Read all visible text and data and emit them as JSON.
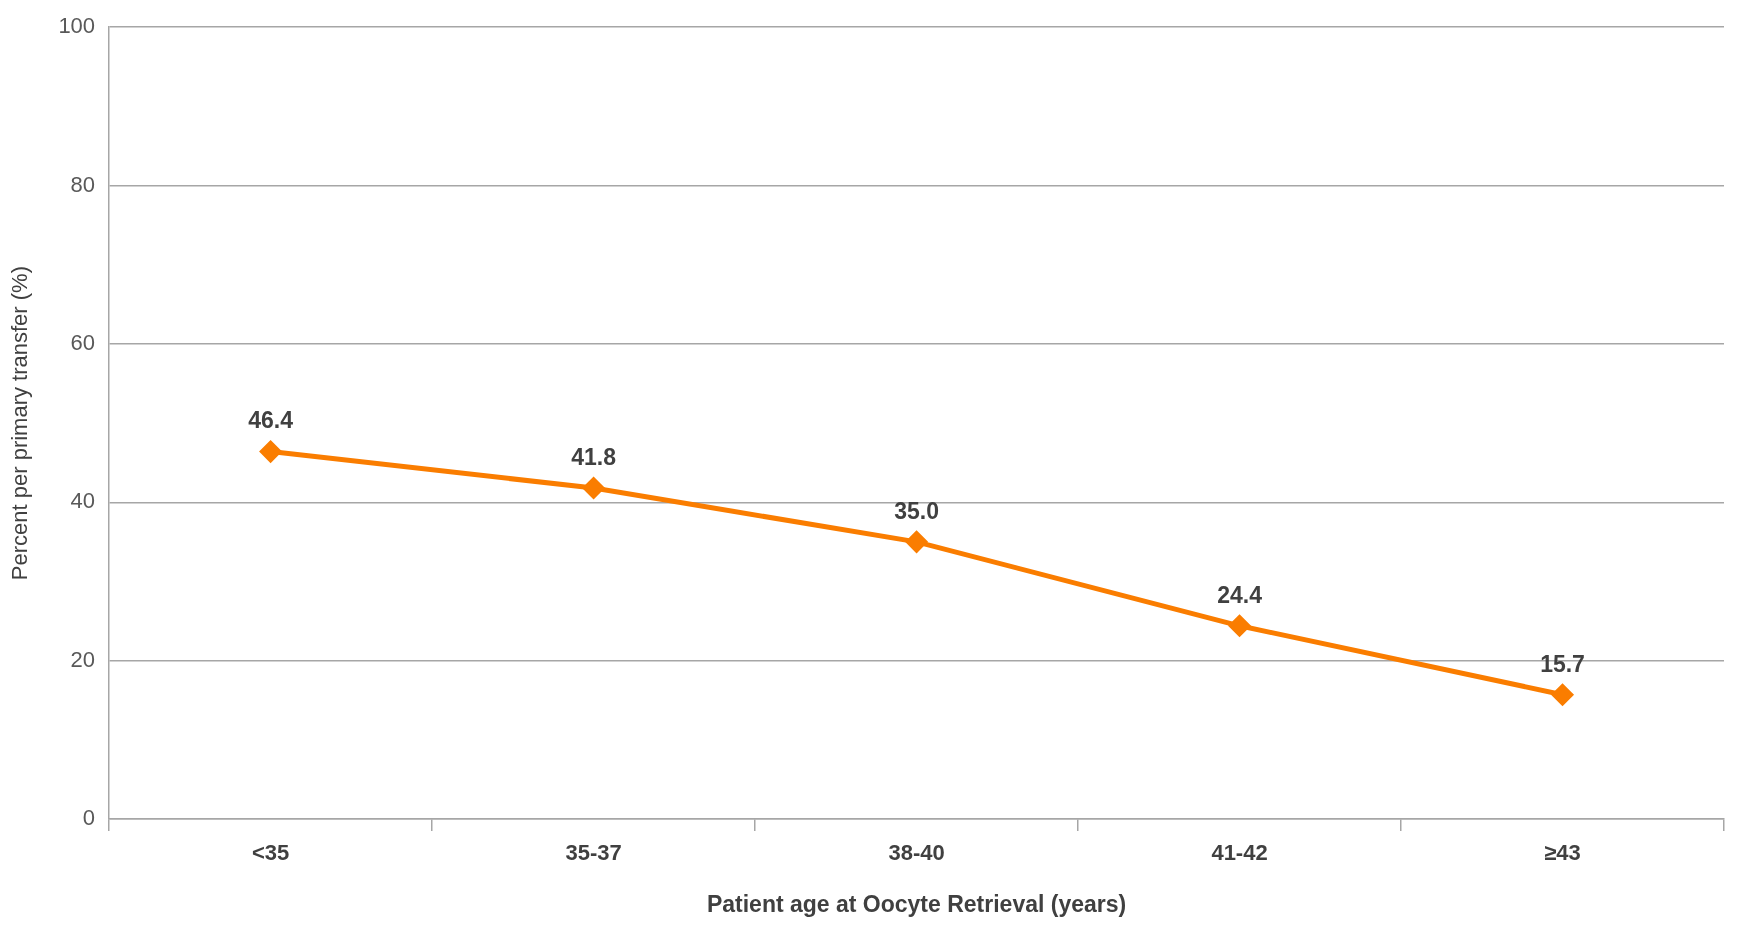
{
  "chart_data": {
    "type": "line",
    "xlabel": "Patient age at Oocyte Retrieval (years)",
    "ylabel": "Percent per primary transfer (%)",
    "categories": [
      "<35",
      "35-37",
      "38-40",
      "41-42",
      "≥43"
    ],
    "series": [
      {
        "color": "#fa7d00",
        "values": [
          46.4,
          41.8,
          35.0,
          24.4,
          15.7
        ]
      }
    ],
    "value_labels": [
      "46.4",
      "41.8",
      "35.0",
      "24.4",
      "15.7"
    ],
    "ylim": [
      0,
      100
    ],
    "yticks": [
      0,
      20,
      40,
      60,
      80,
      100
    ],
    "grid": "y",
    "legend": false,
    "marker": "diamond",
    "line_style": "solid"
  }
}
